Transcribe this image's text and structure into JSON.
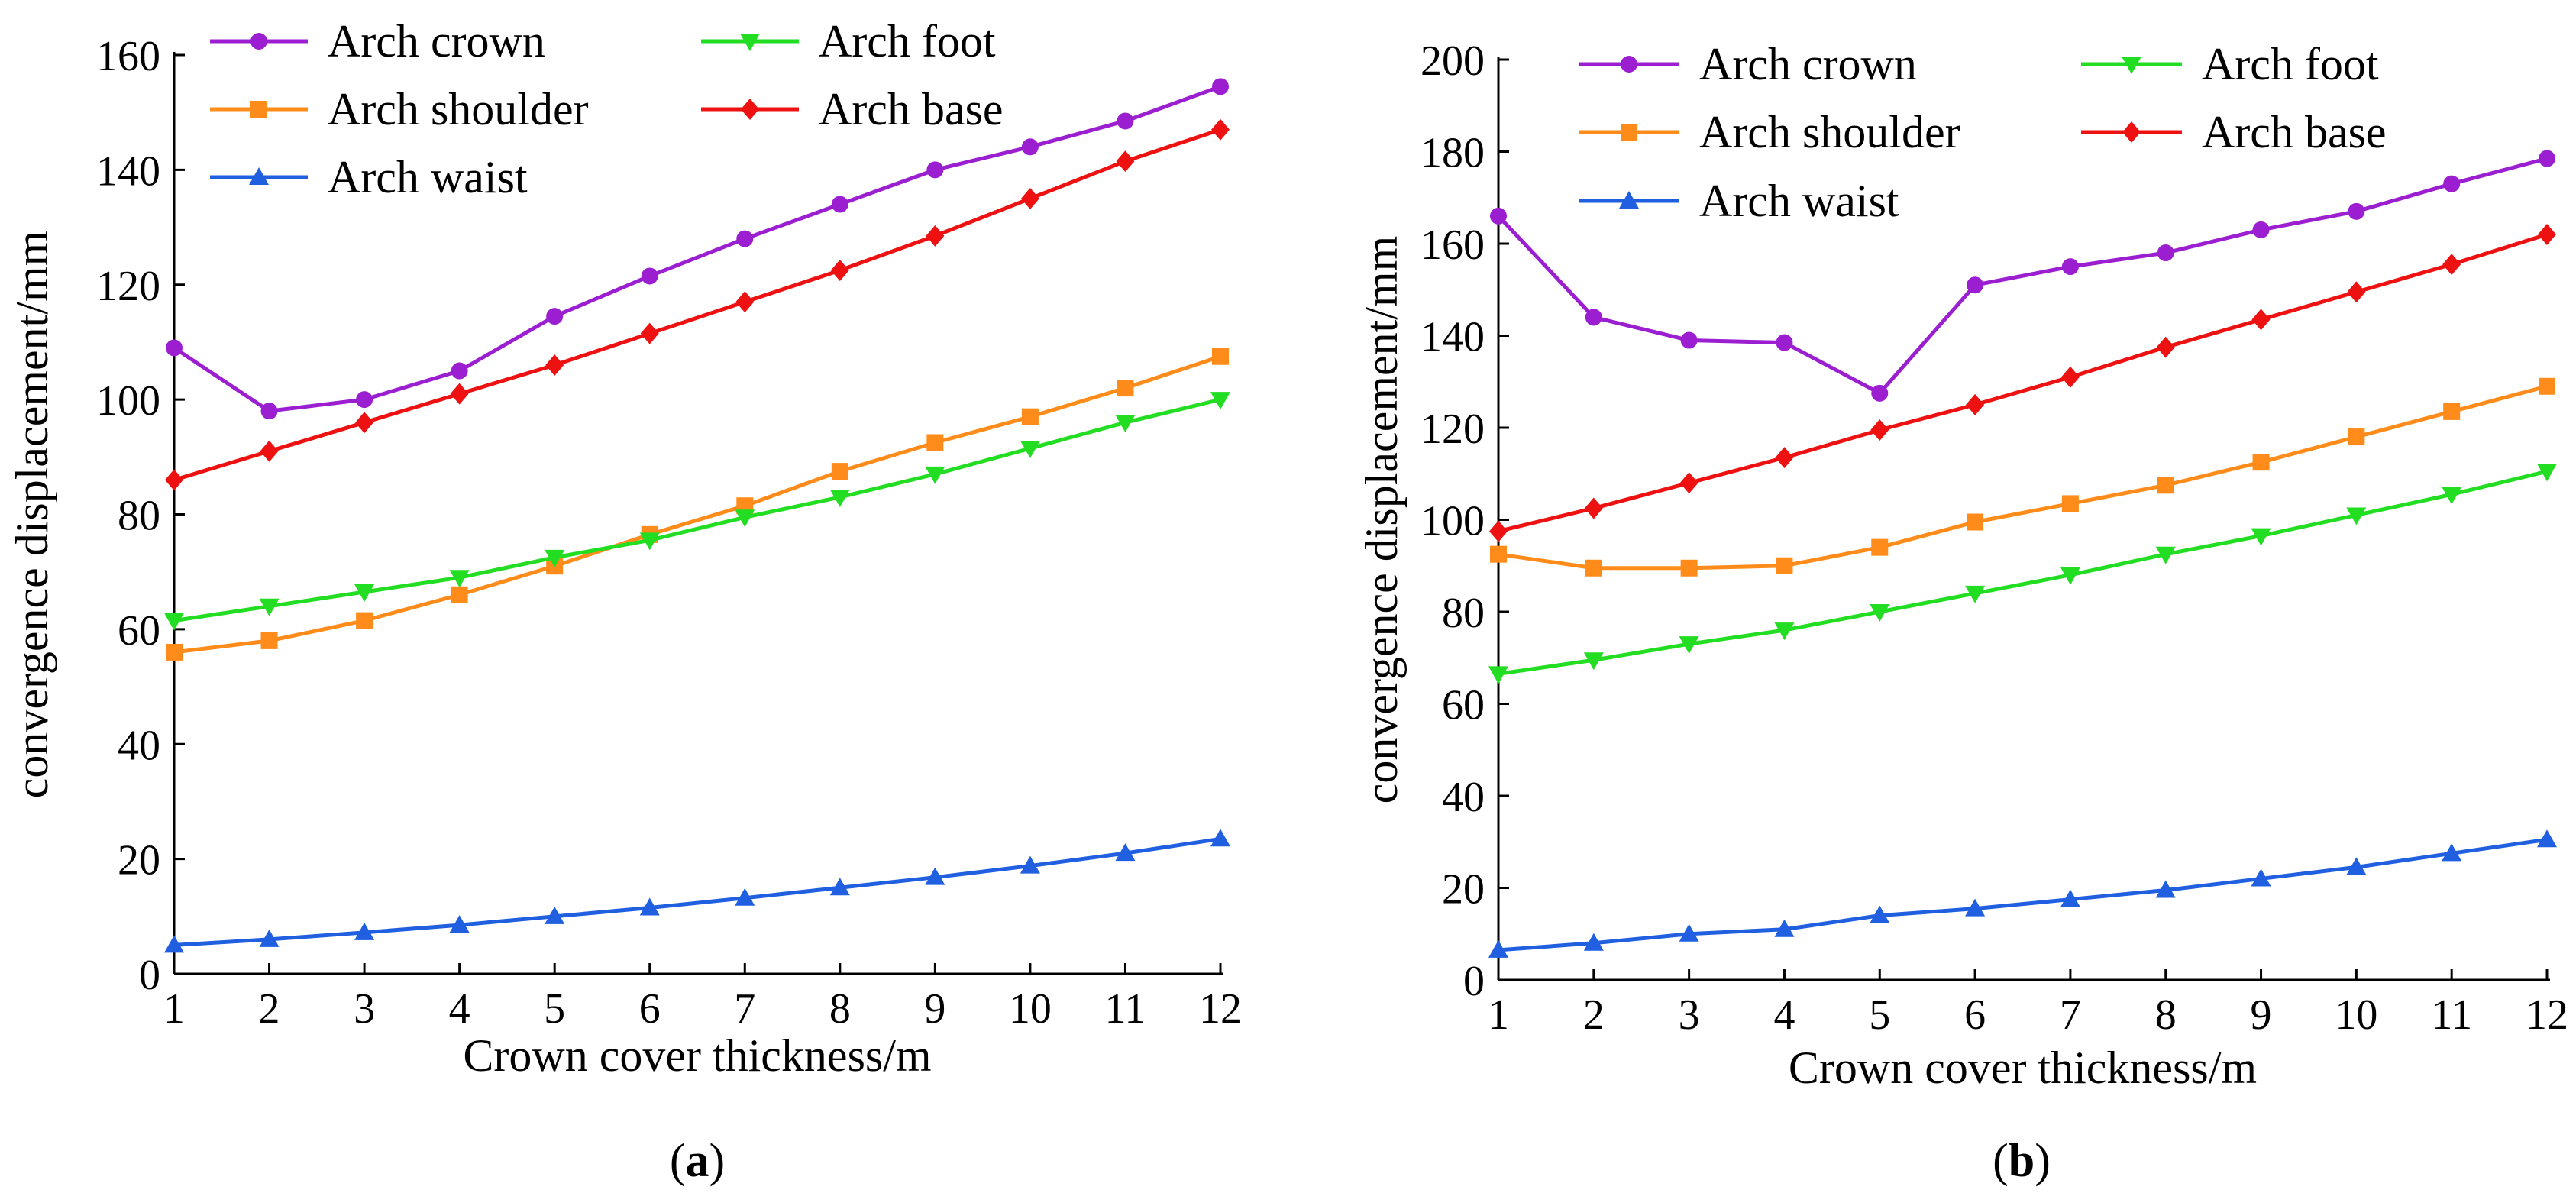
{
  "chart_data": [
    {
      "type": "line",
      "panel_label": "(a)",
      "panel_letter": "a",
      "xlabel": "Crown cover thickness/m",
      "ylabel": "convergence displacement/mm",
      "x": [
        1,
        2,
        3,
        4,
        5,
        6,
        7,
        8,
        9,
        10,
        11,
        12
      ],
      "xlim": [
        1,
        12
      ],
      "ylim": [
        0,
        160
      ],
      "yticks": [
        0,
        20,
        40,
        60,
        80,
        100,
        120,
        140,
        160
      ],
      "legend": "top, two columns",
      "series": [
        {
          "name": "Arch crown",
          "color": "#9b1fd1",
          "marker": "circle",
          "values": [
            109,
            98,
            100,
            105,
            114.5,
            121.5,
            128,
            134,
            140,
            144,
            148.5,
            154.5
          ]
        },
        {
          "name": "Arch shoulder",
          "color": "#ff8c1a",
          "marker": "square",
          "values": [
            56,
            58,
            61.5,
            66,
            71,
            76.5,
            81.5,
            87.5,
            92.5,
            97,
            102,
            107.5
          ]
        },
        {
          "name": "Arch waist",
          "color": "#1f5fe0",
          "marker": "triangle-up",
          "values": [
            5,
            6,
            7.2,
            8.5,
            10,
            11.5,
            13.2,
            15,
            16.8,
            18.8,
            21,
            23.5
          ]
        },
        {
          "name": "Arch foot",
          "color": "#22dd22",
          "marker": "triangle-down",
          "values": [
            61.5,
            64,
            66.5,
            69,
            72.5,
            75.5,
            79.5,
            83,
            87,
            91.5,
            96,
            100
          ]
        },
        {
          "name": "Arch base",
          "color": "#ee1111",
          "marker": "diamond",
          "values": [
            86,
            91,
            96,
            101,
            106,
            111.5,
            117,
            122.5,
            128.5,
            135,
            141.5,
            147
          ]
        }
      ]
    },
    {
      "type": "line",
      "panel_label": "(b)",
      "panel_letter": "b",
      "xlabel": "Crown cover thickness/m",
      "ylabel": "convergence displacement/mm",
      "x": [
        1,
        2,
        3,
        4,
        5,
        6,
        7,
        8,
        9,
        10,
        11,
        12
      ],
      "xlim": [
        1,
        12
      ],
      "ylim": [
        0,
        200
      ],
      "yticks": [
        0,
        20,
        40,
        60,
        80,
        100,
        120,
        140,
        160,
        180,
        200
      ],
      "legend": "top, two columns",
      "series": [
        {
          "name": "Arch crown",
          "color": "#9b1fd1",
          "marker": "circle",
          "values": [
            166,
            144,
            139,
            138.5,
            127.5,
            151,
            155,
            158,
            163,
            167,
            173,
            178.5
          ]
        },
        {
          "name": "Arch shoulder",
          "color": "#ff8c1a",
          "marker": "square",
          "values": [
            92.5,
            89.5,
            89.5,
            90,
            94,
            99.5,
            103.5,
            107.5,
            112.5,
            118,
            123.5,
            129
          ]
        },
        {
          "name": "Arch waist",
          "color": "#1f5fe0",
          "marker": "triangle-up",
          "values": [
            6.5,
            8,
            10,
            11,
            14,
            15.5,
            17.5,
            19.5,
            22,
            24.5,
            27.5,
            30.5
          ]
        },
        {
          "name": "Arch foot",
          "color": "#22dd22",
          "marker": "triangle-down",
          "values": [
            66.5,
            69.5,
            73,
            76,
            80,
            84,
            88,
            92.5,
            96.5,
            101,
            105.5,
            110.5
          ]
        },
        {
          "name": "Arch base",
          "color": "#ee1111",
          "marker": "diamond",
          "values": [
            97.5,
            102.5,
            108,
            113.5,
            119.5,
            125,
            131,
            137.5,
            143.5,
            149.5,
            155.5,
            162
          ]
        }
      ]
    }
  ]
}
